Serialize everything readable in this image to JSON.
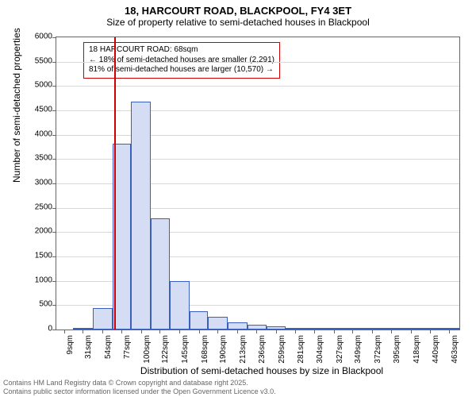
{
  "title": "18, HARCOURT ROAD, BLACKPOOL, FY4 3ET",
  "subtitle": "Size of property relative to semi-detached houses in Blackpool",
  "xaxis_label": "Distribution of semi-detached houses by size in Blackpool",
  "yaxis_label": "Number of semi-detached properties",
  "footer_line1": "Contains HM Land Registry data © Crown copyright and database right 2025.",
  "footer_line2": "Contains public sector information licensed under the Open Government Licence v3.0.",
  "annotation": {
    "line1": "18 HARCOURT ROAD: 68sqm",
    "line2": "← 18% of semi-detached houses are smaller (2,291)",
    "line3": "81% of semi-detached houses are larger (10,570) →"
  },
  "chart": {
    "type": "histogram",
    "plot_bg": "#ffffff",
    "grid_color": "#d8d8d8",
    "axis_color": "#666666",
    "bar_fill": "#d4ddf4",
    "bar_border": "#3a5fbf",
    "marker_color": "#d00000",
    "marker_x": 68,
    "ylim": [
      0,
      6000
    ],
    "yticks": [
      0,
      500,
      1000,
      1500,
      2000,
      2500,
      3000,
      3500,
      4000,
      4500,
      5000,
      5500,
      6000
    ],
    "xticks": [
      9,
      31,
      54,
      77,
      100,
      122,
      145,
      168,
      190,
      213,
      236,
      259,
      281,
      304,
      327,
      349,
      372,
      395,
      418,
      440,
      463
    ],
    "xtick_suffix": "sqm",
    "x_domain": [
      0,
      475
    ],
    "bars": [
      {
        "x0": 20,
        "x1": 43,
        "y": 30
      },
      {
        "x0": 43,
        "x1": 66,
        "y": 440
      },
      {
        "x0": 66,
        "x1": 88,
        "y": 3820
      },
      {
        "x0": 88,
        "x1": 111,
        "y": 4680
      },
      {
        "x0": 111,
        "x1": 134,
        "y": 2280
      },
      {
        "x0": 134,
        "x1": 157,
        "y": 990
      },
      {
        "x0": 157,
        "x1": 179,
        "y": 370
      },
      {
        "x0": 179,
        "x1": 202,
        "y": 260
      },
      {
        "x0": 202,
        "x1": 225,
        "y": 140
      },
      {
        "x0": 225,
        "x1": 248,
        "y": 100
      },
      {
        "x0": 248,
        "x1": 270,
        "y": 60
      },
      {
        "x0": 270,
        "x1": 293,
        "y": 40
      },
      {
        "x0": 293,
        "x1": 316,
        "y": 20
      },
      {
        "x0": 316,
        "x1": 338,
        "y": 12
      },
      {
        "x0": 338,
        "x1": 361,
        "y": 8
      },
      {
        "x0": 361,
        "x1": 384,
        "y": 6
      },
      {
        "x0": 384,
        "x1": 407,
        "y": 4
      },
      {
        "x0": 407,
        "x1": 429,
        "y": 3
      },
      {
        "x0": 429,
        "x1": 452,
        "y": 2
      },
      {
        "x0": 452,
        "x1": 475,
        "y": 2
      }
    ],
    "title_fontsize": 13,
    "subtitle_fontsize": 12,
    "tick_fontsize": 10,
    "label_fontsize": 12,
    "annotation_fontsize": 10
  }
}
